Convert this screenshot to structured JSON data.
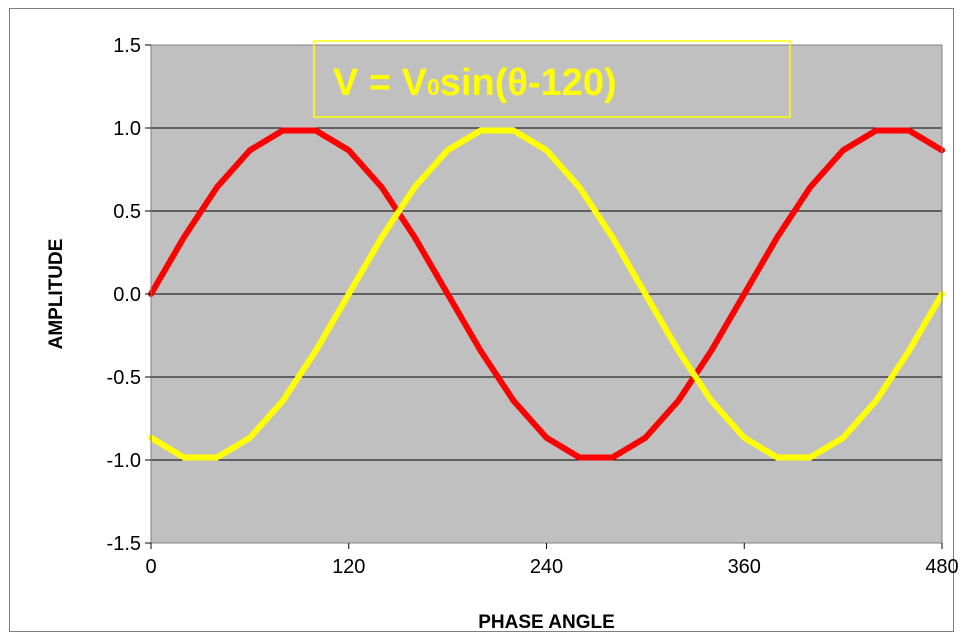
{
  "chart_data": {
    "type": "line",
    "title": "",
    "annotation": {
      "prefix": "V = V",
      "subscript": "0",
      "suffix": "sin(θ-120)"
    },
    "xlabel": "PHASE ANGLE",
    "ylabel": "AMPLITUDE",
    "xlim": [
      0,
      480
    ],
    "ylim": [
      -1.5,
      1.5
    ],
    "x_ticks": [
      0,
      120,
      240,
      360,
      480
    ],
    "x_tick_labels": [
      "0",
      "120",
      "240",
      "360",
      "480"
    ],
    "y_ticks": [
      1.5,
      1.0,
      0.5,
      0.0,
      -0.5,
      -1.0,
      -1.5
    ],
    "y_tick_labels": [
      "1.5",
      "1.0",
      "0.5",
      "0.0",
      "-0.5",
      "-1.0",
      "-1.5"
    ],
    "grid": "horizontal",
    "plot_background": "#c0c0c0",
    "x": [
      0,
      20,
      40,
      60,
      80,
      100,
      120,
      140,
      160,
      180,
      200,
      220,
      240,
      260,
      280,
      300,
      320,
      340,
      360,
      380,
      400,
      420,
      440,
      460,
      480
    ],
    "series": [
      {
        "color": "#ff0000",
        "values": [
          0.0,
          0.342,
          0.643,
          0.866,
          0.985,
          0.985,
          0.866,
          0.643,
          0.342,
          0.0,
          -0.342,
          -0.643,
          -0.866,
          -0.985,
          -0.985,
          -0.866,
          -0.643,
          -0.342,
          0.0,
          0.342,
          0.643,
          0.866,
          0.985,
          0.985,
          0.866
        ]
      },
      {
        "color": "#ffff00",
        "values": [
          -0.866,
          -0.985,
          -0.985,
          -0.866,
          -0.643,
          -0.342,
          0.0,
          0.342,
          0.643,
          0.866,
          0.985,
          0.985,
          0.866,
          0.643,
          0.342,
          0.0,
          -0.342,
          -0.643,
          -0.866,
          -0.985,
          -0.985,
          -0.866,
          -0.643,
          -0.342,
          0.0
        ]
      }
    ]
  }
}
